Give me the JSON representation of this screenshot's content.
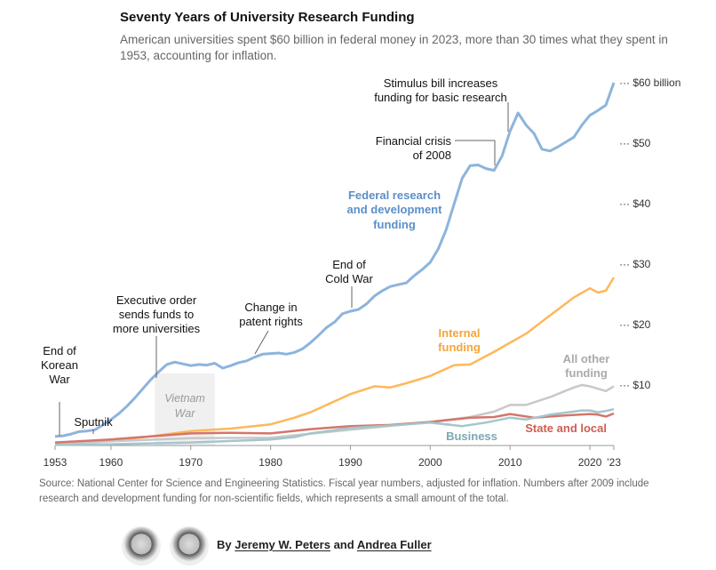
{
  "chart_data": {
    "type": "line",
    "title": "Seventy Years of University Research Funding",
    "subtitle": "American universities spent $60 billion in federal money in 2023, more than 30 times what they spent in 1953, accounting for inflation.",
    "xlim": [
      1953,
      2023
    ],
    "ylim": [
      0,
      60
    ],
    "x_ticks": [
      "1953",
      "1960",
      "1970",
      "1980",
      "1990",
      "2000",
      "2010",
      "2020",
      "’23"
    ],
    "x_tick_values": [
      1953,
      1960,
      1970,
      1980,
      1990,
      2000,
      2010,
      2020,
      2023
    ],
    "y_ticks": [
      "$60 billion",
      "$50",
      "$40",
      "$30",
      "$20",
      "$10"
    ],
    "y_tick_values": [
      60,
      50,
      40,
      30,
      20,
      10
    ],
    "series": [
      {
        "name": "Federal research and development funding",
        "color": "#8db4dc",
        "x": [
          1953,
          1954,
          1955,
          1956,
          1957,
          1958,
          1959,
          1960,
          1961,
          1962,
          1963,
          1964,
          1965,
          1966,
          1967,
          1968,
          1969,
          1970,
          1971,
          1972,
          1973,
          1974,
          1975,
          1976,
          1977,
          1978,
          1979,
          1980,
          1981,
          1982,
          1983,
          1984,
          1985,
          1986,
          1987,
          1988,
          1989,
          1990,
          1991,
          1992,
          1993,
          1994,
          1995,
          1996,
          1997,
          1998,
          1999,
          2000,
          2001,
          2002,
          2003,
          2004,
          2005,
          2006,
          2007,
          2008,
          2009,
          2010,
          2011,
          2012,
          2013,
          2014,
          2015,
          2016,
          2017,
          2018,
          2019,
          2020,
          2021,
          2022,
          2023
        ],
        "y": [
          1.5,
          1.6,
          1.9,
          2.3,
          2.4,
          2.6,
          3.4,
          4.3,
          5.3,
          6.5,
          7.9,
          9.4,
          10.9,
          12.2,
          13.4,
          13.8,
          13.5,
          13.2,
          13.4,
          13.3,
          13.6,
          12.8,
          13.2,
          13.7,
          14,
          14.6,
          15.1,
          15.2,
          15.3,
          15.1,
          15.4,
          16,
          17,
          18.2,
          19.5,
          20.4,
          21.8,
          22.2,
          22.5,
          23.4,
          24.7,
          25.6,
          26.3,
          26.6,
          26.9,
          28.1,
          29.1,
          30.3,
          32.5,
          35.7,
          40,
          44.2,
          46.3,
          46.4,
          45.8,
          45.5,
          47.9,
          52,
          55,
          53,
          51.6,
          49,
          48.7,
          49.4,
          50.2,
          51,
          53,
          54.6,
          55.4,
          56.3,
          60
        ]
      },
      {
        "name": "Internal funding",
        "color": "#fdb85a",
        "x": [
          1953,
          1960,
          1965,
          1970,
          1975,
          1980,
          1983,
          1985,
          1990,
          1993,
          1995,
          1997,
          2000,
          2003,
          2005,
          2008,
          2010,
          2012,
          2015,
          2018,
          2020,
          2021,
          2022,
          2023
        ],
        "y": [
          0.3,
          0.8,
          1.5,
          2.4,
          2.8,
          3.5,
          4.6,
          5.5,
          8.5,
          9.8,
          9.6,
          10.3,
          11.5,
          13.3,
          13.4,
          15.5,
          17,
          18.5,
          21.5,
          24.5,
          26,
          25.3,
          25.6,
          27.8
        ]
      },
      {
        "name": "All other funding",
        "color": "#c8c8c8",
        "x": [
          1953,
          1960,
          1970,
          1980,
          1990,
          2000,
          2005,
          2008,
          2010,
          2012,
          2015,
          2018,
          2019,
          2020,
          2022,
          2023
        ],
        "y": [
          0.3,
          0.7,
          1.2,
          1.3,
          2.6,
          3.9,
          4.7,
          5.6,
          6.7,
          6.7,
          8,
          9.6,
          10,
          9.8,
          9,
          9.8
        ]
      },
      {
        "name": "State and local",
        "color": "#d4756b",
        "x": [
          1953,
          1960,
          1965,
          1970,
          1975,
          1980,
          1985,
          1990,
          1995,
          2000,
          2005,
          2008,
          2010,
          2013,
          2016,
          2020,
          2021,
          2022,
          2023
        ],
        "y": [
          0.5,
          1,
          1.5,
          2,
          2.1,
          2,
          2.7,
          3.2,
          3.4,
          3.9,
          4.6,
          4.7,
          5.2,
          4.6,
          4.9,
          5.2,
          5.1,
          4.8,
          5.3
        ]
      },
      {
        "name": "Business",
        "color": "#a3c6cc",
        "x": [
          1953,
          1960,
          1970,
          1980,
          1983,
          1985,
          1990,
          1995,
          2000,
          2004,
          2007,
          2010,
          2012,
          2015,
          2019,
          2020,
          2021,
          2022,
          2023
        ],
        "y": [
          0.1,
          0.2,
          0.5,
          1,
          1.4,
          2,
          2.9,
          3.3,
          3.8,
          3.2,
          3.8,
          4.6,
          4.3,
          5.1,
          5.8,
          5.8,
          5.5,
          5.7,
          6
        ]
      }
    ],
    "series_labels": [
      "Federal research",
      "and development",
      "funding",
      "Internal",
      "funding",
      "All other",
      "funding",
      "State and local",
      "Business"
    ],
    "shaded_period": {
      "label": [
        "Vietnam",
        "War"
      ],
      "x": [
        1965.5,
        1973
      ]
    },
    "annotations": [
      {
        "year": 1953.5,
        "value": 1.5,
        "lines": [
          "End of",
          "Korean",
          "War"
        ]
      },
      {
        "year": 1957.7,
        "value": 2.5,
        "lines": [
          "Sputnik"
        ]
      },
      {
        "year": 1965.5,
        "value": 11.3,
        "lines": [
          "Executive order",
          "sends funds to",
          "more universities"
        ]
      },
      {
        "year": 1980.5,
        "value": 15.2,
        "lines": [
          "Change in",
          "patent rights"
        ]
      },
      {
        "year": 1990,
        "value": 22.2,
        "lines": [
          "End of",
          "Cold War"
        ]
      },
      {
        "year": 2008.5,
        "value": 45.6,
        "lines": [
          "Financial crisis",
          "of 2008"
        ]
      },
      {
        "year": 2010,
        "value": 50,
        "lines": [
          "Stimulus bill increases",
          "funding for basic research"
        ]
      }
    ]
  },
  "source": "Source: National Center for Science and Engineering Statistics. Fiscal year numbers, adjusted for inflation. Numbers after 2009 include research and development funding for non-scientific fields, which represents a small amount of the total.",
  "byline": {
    "prefix": "By",
    "author1": "Jeremy W. Peters",
    "and": "and",
    "author2": "Andrea Fuller"
  }
}
